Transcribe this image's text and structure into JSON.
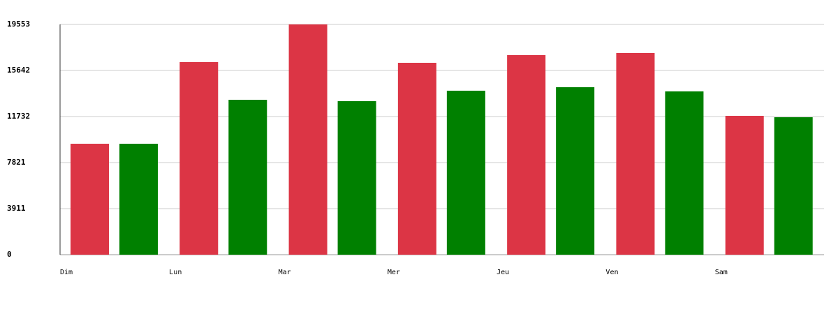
{
  "chart_data": {
    "type": "bar",
    "categories": [
      "Dim",
      "Lun",
      "Mar",
      "Mer",
      "Jeu",
      "Ven",
      "Sam"
    ],
    "series": [
      {
        "color": "#dc3545",
        "values": [
          9421,
          16353,
          19553,
          16294,
          16946,
          17124,
          11791
        ]
      },
      {
        "color": "#008000",
        "values": [
          9421,
          13154,
          13035,
          13924,
          14220,
          13865,
          11672
        ]
      }
    ],
    "ylim": [
      0,
      19553
    ],
    "yticks": [
      0,
      3911,
      7821,
      11732,
      15642,
      19553
    ],
    "grid": true
  }
}
